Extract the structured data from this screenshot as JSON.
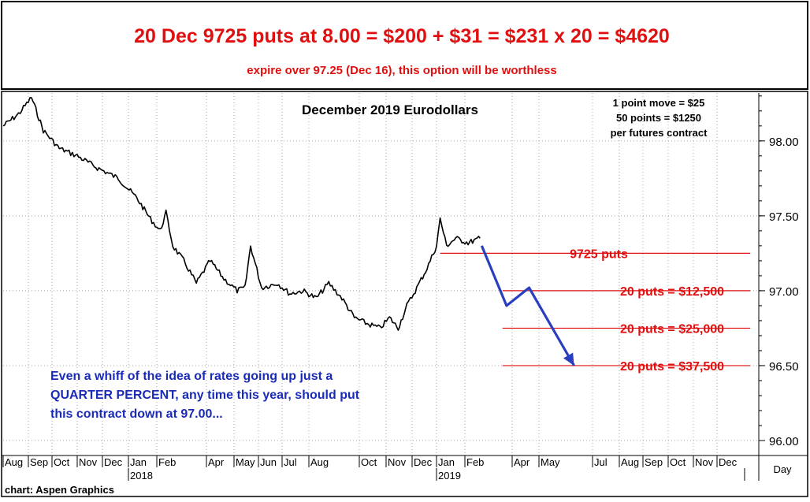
{
  "header": {
    "headline": "20 Dec 9725 puts at 8.00 = $200 + $31 = $231 x 20 = $4620",
    "subline": "expire over 97.25 (Dec 16), this option will be worthless"
  },
  "chart_data": {
    "type": "line",
    "title": "December 2019 Eurodollars",
    "notes": [
      "1 point move = $25",
      "50 points = $1250",
      "per futures contract"
    ],
    "y_ticks": [
      "98.00",
      "97.50",
      "97.00",
      "96.50",
      "96.00"
    ],
    "ylim": [
      95.9,
      98.32
    ],
    "months": [
      "Aug",
      "Sep",
      "Oct",
      "Nov",
      "Dec",
      "Jan",
      "Feb",
      "Apr",
      "May",
      "Jun",
      "Jul",
      "Aug",
      "Oct",
      "Nov",
      "Dec",
      "Jan",
      "Feb",
      "Apr",
      "May",
      "Jul",
      "Aug",
      "Sep",
      "Oct",
      "Nov",
      "Dec"
    ],
    "year_labels": [
      "2018",
      "2019"
    ],
    "x_axis_unit": "Day",
    "source": "chart: Aspen Graphics",
    "series": [
      {
        "values": [
          {
            "date": "2017-08-01",
            "y": 98.1
          },
          {
            "date": "2017-08-20",
            "y": 98.18
          },
          {
            "date": "2017-09-05",
            "y": 98.29
          },
          {
            "date": "2017-09-20",
            "y": 98.07
          },
          {
            "date": "2017-10-10",
            "y": 97.95
          },
          {
            "date": "2017-11-01",
            "y": 97.9
          },
          {
            "date": "2017-11-25",
            "y": 97.82
          },
          {
            "date": "2017-12-20",
            "y": 97.75
          },
          {
            "date": "2018-01-10",
            "y": 97.62
          },
          {
            "date": "2018-01-25",
            "y": 97.48
          },
          {
            "date": "2018-02-05",
            "y": 97.4
          },
          {
            "date": "2018-02-12",
            "y": 97.52
          },
          {
            "date": "2018-02-20",
            "y": 97.3
          },
          {
            "date": "2018-03-05",
            "y": 97.2
          },
          {
            "date": "2018-03-20",
            "y": 97.05
          },
          {
            "date": "2018-04-05",
            "y": 97.2
          },
          {
            "date": "2018-04-20",
            "y": 97.08
          },
          {
            "date": "2018-05-05",
            "y": 97.0
          },
          {
            "date": "2018-05-15",
            "y": 97.02
          },
          {
            "date": "2018-05-22",
            "y": 97.3
          },
          {
            "date": "2018-06-05",
            "y": 97.02
          },
          {
            "date": "2018-06-25",
            "y": 97.05
          },
          {
            "date": "2018-07-10",
            "y": 96.98
          },
          {
            "date": "2018-07-25",
            "y": 97.0
          },
          {
            "date": "2018-08-10",
            "y": 96.95
          },
          {
            "date": "2018-08-25",
            "y": 97.05
          },
          {
            "date": "2018-09-10",
            "y": 96.95
          },
          {
            "date": "2018-09-25",
            "y": 96.82
          },
          {
            "date": "2018-10-10",
            "y": 96.78
          },
          {
            "date": "2018-10-25",
            "y": 96.75
          },
          {
            "date": "2018-11-05",
            "y": 96.82
          },
          {
            "date": "2018-11-15",
            "y": 96.75
          },
          {
            "date": "2018-11-25",
            "y": 96.9
          },
          {
            "date": "2018-12-05",
            "y": 97.0
          },
          {
            "date": "2018-12-20",
            "y": 97.15
          },
          {
            "date": "2019-01-01",
            "y": 97.3
          },
          {
            "date": "2019-01-05",
            "y": 97.48
          },
          {
            "date": "2019-01-12",
            "y": 97.3
          },
          {
            "date": "2019-01-22",
            "y": 97.35
          },
          {
            "date": "2019-02-05",
            "y": 97.32
          },
          {
            "date": "2019-02-20",
            "y": 97.35
          }
        ]
      },
      {
        "values": [
          {
            "date": "2019-02-22",
            "y": 97.3
          },
          {
            "date": "2019-03-25",
            "y": 96.9
          },
          {
            "date": "2019-04-20",
            "y": 97.02
          },
          {
            "date": "2019-06-10",
            "y": 96.5
          }
        ]
      }
    ],
    "annotations": [
      {
        "text": "9725 puts",
        "y": 97.25,
        "date_from": "2019-01-05",
        "date_to": "2019-12-20"
      },
      {
        "text": "20 puts = $12,500",
        "y": 97.0,
        "date_from": "2019-03-20",
        "date_to": "2019-12-20"
      },
      {
        "text": "20 puts = $25,000",
        "y": 96.75,
        "date_from": "2019-03-20",
        "date_to": "2019-12-20"
      },
      {
        "text": "20 puts = $37,500",
        "y": 96.5,
        "date_from": "2019-03-20",
        "date_to": "2019-12-20"
      }
    ],
    "callout": [
      "Even a whiff of the idea of rates going up just a",
      "QUARTER PERCENT, any time this year, should put",
      "this contract down at 97.00..."
    ],
    "colors": {
      "headline": "#e01010",
      "price": "#000000",
      "projection": "#2a3fc0",
      "levels": "#e01010",
      "callout": "#1a2bb8"
    }
  }
}
